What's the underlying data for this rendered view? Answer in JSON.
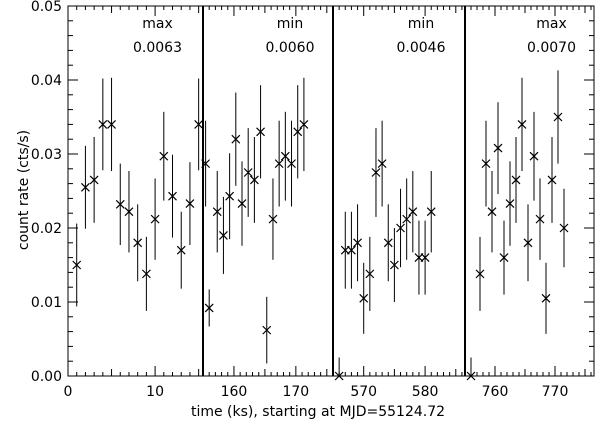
{
  "chart_data": {
    "type": "scatter",
    "xlabel": "time (ks), starting at MJD=55124.72",
    "ylabel": "count rate (cts/s)",
    "ylim": [
      0,
      0.05
    ],
    "y_ticks": [
      "0.00",
      "0.01",
      "0.02",
      "0.03",
      "0.04",
      "0.05"
    ],
    "grid": false,
    "marker": "x",
    "error_bars": true,
    "panels": [
      {
        "label": "max",
        "value": "0.0063",
        "xlim": [
          0,
          15.5
        ],
        "x_ticks": [
          0,
          10
        ],
        "x_tick_labels": [
          "0",
          "10"
        ],
        "points": [
          {
            "x": 1.0,
            "y": 0.015,
            "err": 0.0056
          },
          {
            "x": 2.0,
            "y": 0.0255,
            "err": 0.0056
          },
          {
            "x": 3.0,
            "y": 0.0265,
            "err": 0.0058
          },
          {
            "x": 4.0,
            "y": 0.034,
            "err": 0.0062
          },
          {
            "x": 5.0,
            "y": 0.034,
            "err": 0.0063
          },
          {
            "x": 6.0,
            "y": 0.0232,
            "err": 0.0055
          },
          {
            "x": 7.0,
            "y": 0.0222,
            "err": 0.0055
          },
          {
            "x": 8.0,
            "y": 0.018,
            "err": 0.0052
          },
          {
            "x": 9.0,
            "y": 0.0138,
            "err": 0.005
          },
          {
            "x": 10.0,
            "y": 0.0212,
            "err": 0.0055
          },
          {
            "x": 11.0,
            "y": 0.0297,
            "err": 0.006
          },
          {
            "x": 12.0,
            "y": 0.0243,
            "err": 0.0056
          },
          {
            "x": 13.0,
            "y": 0.017,
            "err": 0.0052
          },
          {
            "x": 14.0,
            "y": 0.0233,
            "err": 0.0056
          },
          {
            "x": 15.0,
            "y": 0.034,
            "err": 0.0062
          },
          {
            "x": 15.8,
            "y": 0.0287,
            "err": 0.0058
          }
        ]
      },
      {
        "label": "min",
        "value": "0.0060",
        "xlim": [
          155,
          176
        ],
        "x_ticks": [
          160,
          170
        ],
        "x_tick_labels": [
          "160",
          "170"
        ],
        "points": [
          {
            "x": 156.0,
            "y": 0.0092,
            "err": 0.0025
          },
          {
            "x": 157.3,
            "y": 0.0222,
            "err": 0.0055
          },
          {
            "x": 158.3,
            "y": 0.019,
            "err": 0.0052
          },
          {
            "x": 159.3,
            "y": 0.0243,
            "err": 0.0058
          },
          {
            "x": 160.3,
            "y": 0.032,
            "err": 0.0063
          },
          {
            "x": 161.3,
            "y": 0.0233,
            "err": 0.0057
          },
          {
            "x": 162.3,
            "y": 0.0275,
            "err": 0.006
          },
          {
            "x": 163.3,
            "y": 0.0265,
            "err": 0.0058
          },
          {
            "x": 164.3,
            "y": 0.033,
            "err": 0.0063
          },
          {
            "x": 165.3,
            "y": 0.0062,
            "err": 0.0045
          },
          {
            "x": 166.3,
            "y": 0.0212,
            "err": 0.0055
          },
          {
            "x": 167.3,
            "y": 0.0287,
            "err": 0.0058
          },
          {
            "x": 168.3,
            "y": 0.0297,
            "err": 0.006
          },
          {
            "x": 169.3,
            "y": 0.0287,
            "err": 0.0058
          },
          {
            "x": 170.3,
            "y": 0.033,
            "err": 0.0063
          },
          {
            "x": 171.3,
            "y": 0.034,
            "err": 0.0063
          }
        ]
      },
      {
        "label": "min",
        "value": "0.0046",
        "xlim": [
          565,
          586.5
        ],
        "x_ticks": [
          570,
          580
        ],
        "x_tick_labels": [
          "570",
          "580"
        ],
        "points": [
          {
            "x": 566.0,
            "y": 0.0,
            "err": 0.0025
          },
          {
            "x": 567.0,
            "y": 0.017,
            "err": 0.0052
          },
          {
            "x": 568.0,
            "y": 0.017,
            "err": 0.0052
          },
          {
            "x": 569.0,
            "y": 0.018,
            "err": 0.0052
          },
          {
            "x": 570.0,
            "y": 0.0105,
            "err": 0.0048
          },
          {
            "x": 571.0,
            "y": 0.0138,
            "err": 0.005
          },
          {
            "x": 572.0,
            "y": 0.0275,
            "err": 0.006
          },
          {
            "x": 573.0,
            "y": 0.0287,
            "err": 0.0058
          },
          {
            "x": 574.0,
            "y": 0.018,
            "err": 0.0052
          },
          {
            "x": 575.0,
            "y": 0.015,
            "err": 0.005
          },
          {
            "x": 576.0,
            "y": 0.02,
            "err": 0.0053
          },
          {
            "x": 577.0,
            "y": 0.0212,
            "err": 0.0055
          },
          {
            "x": 578.0,
            "y": 0.0222,
            "err": 0.0055
          },
          {
            "x": 579.0,
            "y": 0.016,
            "err": 0.005
          },
          {
            "x": 580.0,
            "y": 0.016,
            "err": 0.005
          },
          {
            "x": 581.0,
            "y": 0.0222,
            "err": 0.0055
          }
        ]
      },
      {
        "label": "max",
        "value": "0.0070",
        "xlim": [
          755,
          776.5
        ],
        "x_ticks": [
          760,
          770
        ],
        "x_tick_labels": [
          "760",
          "770"
        ],
        "points": [
          {
            "x": 756.0,
            "y": 0.0,
            "err": 0.0025
          },
          {
            "x": 757.5,
            "y": 0.0138,
            "err": 0.005
          },
          {
            "x": 758.5,
            "y": 0.0287,
            "err": 0.0058
          },
          {
            "x": 759.5,
            "y": 0.0222,
            "err": 0.0055
          },
          {
            "x": 760.5,
            "y": 0.0308,
            "err": 0.0062
          },
          {
            "x": 761.5,
            "y": 0.016,
            "err": 0.005
          },
          {
            "x": 762.5,
            "y": 0.0233,
            "err": 0.0057
          },
          {
            "x": 763.5,
            "y": 0.0265,
            "err": 0.0058
          },
          {
            "x": 764.5,
            "y": 0.034,
            "err": 0.0063
          },
          {
            "x": 765.5,
            "y": 0.018,
            "err": 0.0052
          },
          {
            "x": 766.5,
            "y": 0.0297,
            "err": 0.006
          },
          {
            "x": 767.5,
            "y": 0.0212,
            "err": 0.0055
          },
          {
            "x": 768.5,
            "y": 0.0105,
            "err": 0.0048
          },
          {
            "x": 769.5,
            "y": 0.0265,
            "err": 0.0058
          },
          {
            "x": 770.5,
            "y": 0.035,
            "err": 0.0063
          },
          {
            "x": 771.5,
            "y": 0.02,
            "err": 0.0053
          }
        ]
      }
    ]
  }
}
